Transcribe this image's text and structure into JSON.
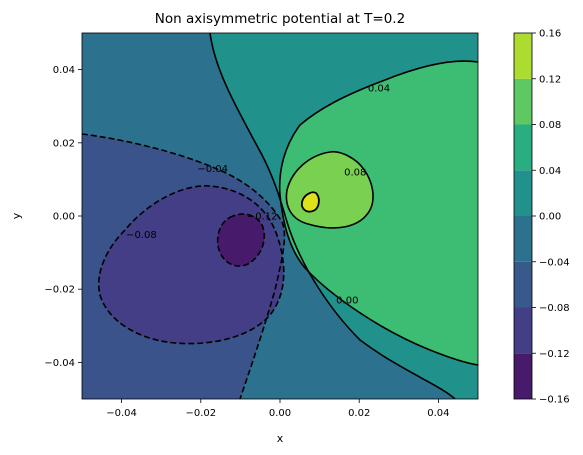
{
  "chart_data": {
    "type": "contour",
    "title": "Non axisymmetric potential at T=0.2",
    "xlabel": "x",
    "ylabel": "y",
    "xlim": [
      -0.05,
      0.05
    ],
    "ylim": [
      -0.05,
      0.05
    ],
    "x_ticks": [
      "−0.04",
      "−0.02",
      "0.00",
      "0.02",
      "0.04"
    ],
    "y_ticks": [
      "−0.04",
      "−0.02",
      "0.00",
      "0.02",
      "0.04"
    ],
    "colorbar": {
      "levels": [
        -0.16,
        -0.12,
        -0.08,
        -0.04,
        0.0,
        0.04,
        0.08,
        0.12,
        0.16
      ],
      "tick_labels": [
        "−0.16",
        "−0.12",
        "−0.08",
        "−0.04",
        "0.00",
        "0.04",
        "0.08",
        "0.12",
        "0.16"
      ],
      "colors": [
        "#481a6c",
        "#433e85",
        "#38598c",
        "#2c728e",
        "#21918c",
        "#28ae80",
        "#5ec962",
        "#addc30",
        "#fde725"
      ]
    },
    "contour_labels": [
      {
        "text": "0.04",
        "x": 0.025,
        "y": 0.035
      },
      {
        "text": "0.08",
        "x": 0.019,
        "y": 0.012
      },
      {
        "text": "0.00",
        "x": 0.017,
        "y": -0.023
      },
      {
        "text": "−0.04",
        "x": -0.017,
        "y": 0.013
      },
      {
        "text": "−0.12",
        "x": -0.0045,
        "y": 0.0
      },
      {
        "text": "−0.08",
        "x": -0.035,
        "y": -0.005
      }
    ],
    "grid": false
  }
}
